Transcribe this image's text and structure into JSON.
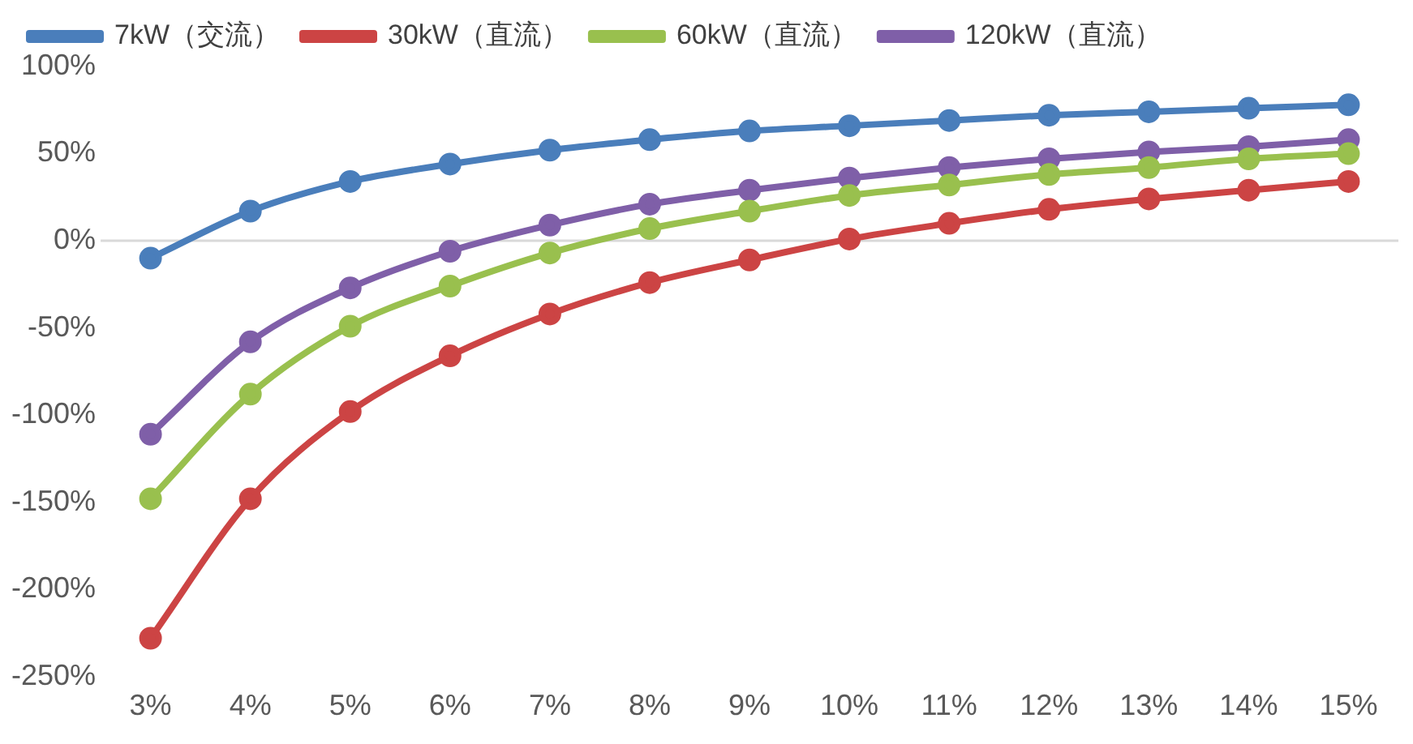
{
  "chart_data": {
    "type": "line",
    "categories": [
      "3%",
      "4%",
      "5%",
      "6%",
      "7%",
      "8%",
      "9%",
      "10%",
      "11%",
      "12%",
      "13%",
      "14%",
      "15%"
    ],
    "series": [
      {
        "name": "7kW（交流）",
        "color": "#4a7ebb",
        "values": [
          -10,
          17,
          34,
          44,
          52,
          58,
          63,
          66,
          69,
          72,
          74,
          76,
          78
        ]
      },
      {
        "name": "30kW（直流）",
        "color": "#cc4444",
        "values": [
          -228,
          -148,
          -98,
          -66,
          -42,
          -24,
          -11,
          1,
          10,
          18,
          24,
          29,
          34
        ]
      },
      {
        "name": "60kW（直流）",
        "color": "#99c04e",
        "values": [
          -148,
          -88,
          -49,
          -26,
          -7,
          7,
          17,
          26,
          32,
          38,
          42,
          47,
          50
        ]
      },
      {
        "name": "120kW（直流）",
        "color": "#7f5fa8",
        "values": [
          -111,
          -58,
          -27,
          -6,
          9,
          21,
          29,
          36,
          42,
          47,
          51,
          54,
          58
        ]
      }
    ],
    "ylim": [
      -250,
      100
    ],
    "yticks": [
      {
        "value": -250,
        "label": "-250%"
      },
      {
        "value": -200,
        "label": "-200%"
      },
      {
        "value": -150,
        "label": "-150%"
      },
      {
        "value": -100,
        "label": "-100%"
      },
      {
        "value": -50,
        "label": "-50%"
      },
      {
        "value": 0,
        "label": "0%"
      },
      {
        "value": 50,
        "label": "50%"
      },
      {
        "value": 100,
        "label": "100%"
      }
    ],
    "ref_lines": [
      {
        "axis": "y",
        "value": 0,
        "color": "#d9d9d9"
      }
    ],
    "grid": false,
    "legend": "top",
    "marker": "circle",
    "line_style": "solid"
  }
}
